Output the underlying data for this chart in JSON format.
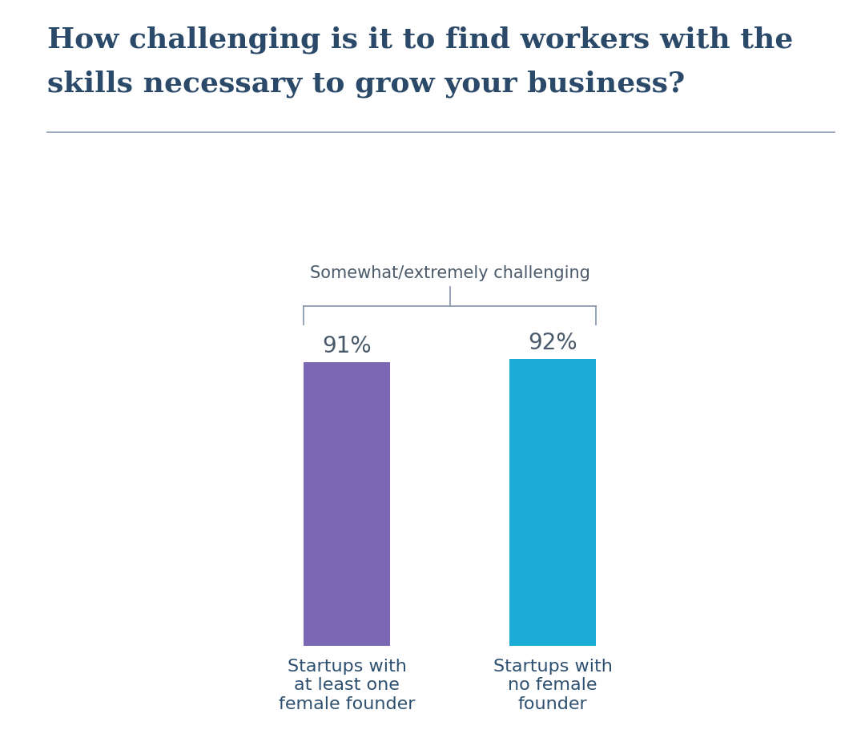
{
  "title_line1": "How challenging is it to find workers with the",
  "title_line2": "skills necessary to grow your business?",
  "title_color": "#2b4a6a",
  "title_fontsize": 26,
  "title_fontweight": "bold",
  "bracket_label": "Somewhat/extremely challenging",
  "bracket_label_color": "#4a5a6a",
  "bracket_label_fontsize": 15,
  "categories": [
    "Startups with\nat least one\nfemale founder",
    "Startups with\nno female\nfounder"
  ],
  "values": [
    91,
    92
  ],
  "bar_colors": [
    "#7B68B5",
    "#1aacd4"
  ],
  "bar_labels": [
    "91%",
    "92%"
  ],
  "bar_label_color": "#4a5a6a",
  "bar_label_fontsize": 20,
  "xlabel_color": "#2e5070",
  "xlabel_fontsize": 16,
  "background_color": "#ffffff",
  "separator_color": "#8a9bb0",
  "ylim": [
    0,
    100
  ]
}
